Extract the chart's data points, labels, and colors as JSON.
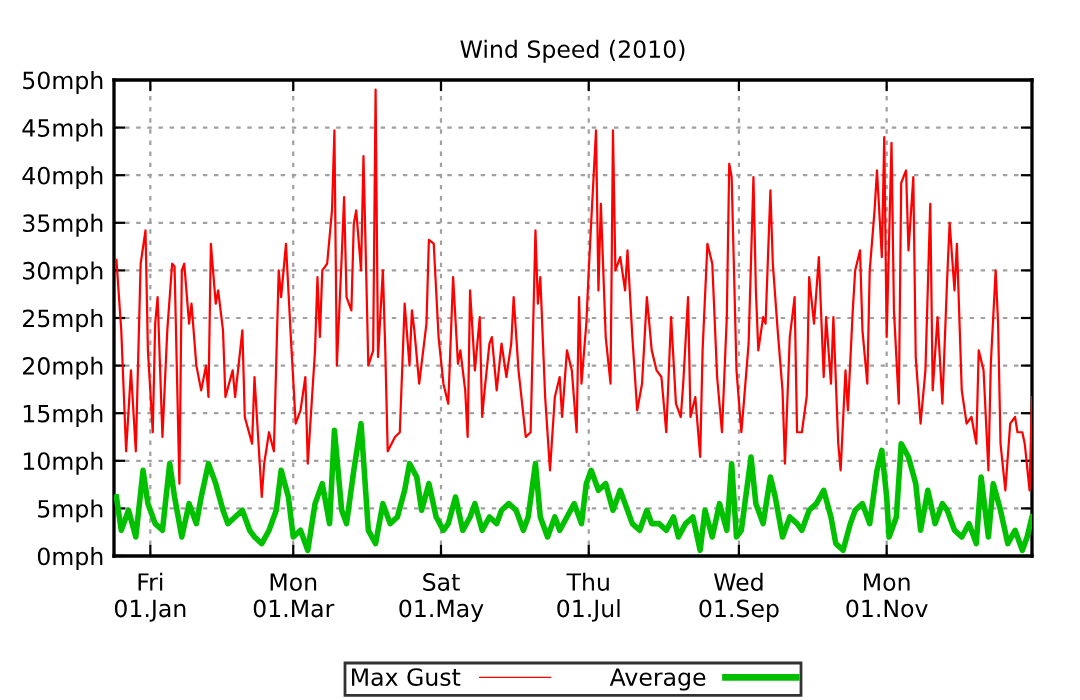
{
  "chart_data": {
    "type": "line",
    "title": "Wind Speed (2010)",
    "xlim": [
      "2009-12-17",
      "2010-12-31"
    ],
    "xticks": [
      {
        "value": "2010-01-01",
        "label": "Fri\n01.Jan"
      },
      {
        "value": "2010-03-01",
        "label": "Mon\n01.Mar"
      },
      {
        "value": "2010-05-01",
        "label": "Sat\n01.May"
      },
      {
        "value": "2010-07-01",
        "label": "Thu\n01.Jul"
      },
      {
        "value": "2010-09-01",
        "label": "Wed\n01.Sep"
      },
      {
        "value": "2010-11-01",
        "label": "Mon\n01.Nov"
      }
    ],
    "ylim": [
      0,
      50
    ],
    "yticks": [
      {
        "value": 0,
        "label": "0mph"
      },
      {
        "value": 5,
        "label": "5mph"
      },
      {
        "value": 10,
        "label": "10mph"
      },
      {
        "value": 15,
        "label": "15mph"
      },
      {
        "value": 20,
        "label": "20mph"
      },
      {
        "value": 25,
        "label": "25mph"
      },
      {
        "value": 30,
        "label": "30mph"
      },
      {
        "value": 35,
        "label": "35mph"
      },
      {
        "value": 40,
        "label": "40mph"
      },
      {
        "value": 45,
        "label": "45mph"
      },
      {
        "value": 50,
        "label": "50mph"
      }
    ],
    "grid": true,
    "legend": "bottom",
    "line_style": "solid",
    "series": [
      {
        "name": "Max Gust",
        "color": "#ff0000",
        "x": [
          "2009-12-18",
          "2009-12-20",
          "2009-12-22",
          "2009-12-24",
          "2009-12-26",
          "2009-12-28",
          "2009-12-30",
          "2009-12-31",
          "2010-01-02",
          "2010-01-03",
          "2010-01-04",
          "2010-01-06",
          "2010-01-08",
          "2010-01-10",
          "2010-01-11",
          "2010-01-13",
          "2010-01-14",
          "2010-01-15",
          "2010-01-17",
          "2010-01-18",
          "2010-01-20",
          "2010-01-22",
          "2010-01-24",
          "2010-01-25",
          "2010-01-26",
          "2010-01-28",
          "2010-01-29",
          "2010-01-31",
          "2010-02-01",
          "2010-02-04",
          "2010-02-05",
          "2010-02-08",
          "2010-02-09",
          "2010-02-12",
          "2010-02-13",
          "2010-02-16",
          "2010-02-17",
          "2010-02-19",
          "2010-02-21",
          "2010-02-23",
          "2010-02-24",
          "2010-02-26",
          "2010-02-28",
          "2010-03-02",
          "2010-03-04",
          "2010-03-06",
          "2010-03-07",
          "2010-03-10",
          "2010-03-11",
          "2010-03-12",
          "2010-03-13",
          "2010-03-15",
          "2010-03-17",
          "2010-03-18",
          "2010-03-19",
          "2010-03-21",
          "2010-03-22",
          "2010-03-23",
          "2010-03-25",
          "2010-03-26",
          "2010-03-27",
          "2010-03-29",
          "2010-03-30",
          "2010-04-01",
          "2010-04-03",
          "2010-04-04",
          "2010-04-05",
          "2010-04-07",
          "2010-04-08",
          "2010-04-09",
          "2010-04-12",
          "2010-04-14",
          "2010-04-16",
          "2010-04-18",
          "2010-04-19",
          "2010-04-20",
          "2010-04-22",
          "2010-04-23",
          "2010-04-25",
          "2010-04-26",
          "2010-04-28",
          "2010-04-30",
          "2010-05-02",
          "2010-05-04",
          "2010-05-06",
          "2010-05-08",
          "2010-05-09",
          "2010-05-11",
          "2010-05-12",
          "2010-05-13",
          "2010-05-15",
          "2010-05-17",
          "2010-05-18",
          "2010-05-19",
          "2010-05-21",
          "2010-05-22",
          "2010-05-24",
          "2010-05-26",
          "2010-05-28",
          "2010-05-30",
          "2010-05-31",
          "2010-06-02",
          "2010-06-05",
          "2010-06-07",
          "2010-06-09",
          "2010-06-10",
          "2010-06-11",
          "2010-06-13",
          "2010-06-15",
          "2010-06-17",
          "2010-06-19",
          "2010-06-20",
          "2010-06-22",
          "2010-06-24",
          "2010-06-26",
          "2010-06-27",
          "2010-06-28",
          "2010-06-30",
          "2010-07-01",
          "2010-07-02",
          "2010-07-04",
          "2010-07-05",
          "2010-07-06",
          "2010-07-08",
          "2010-07-10",
          "2010-07-11",
          "2010-07-12",
          "2010-07-14",
          "2010-07-16",
          "2010-07-17",
          "2010-07-19",
          "2010-07-21",
          "2010-07-23",
          "2010-07-25",
          "2010-07-27",
          "2010-07-29",
          "2010-07-31",
          "2010-08-02",
          "2010-08-04",
          "2010-08-06",
          "2010-08-08",
          "2010-08-09",
          "2010-08-11",
          "2010-08-12",
          "2010-08-14",
          "2010-08-16",
          "2010-08-17",
          "2010-08-19",
          "2010-08-21",
          "2010-08-23",
          "2010-08-25",
          "2010-08-27",
          "2010-08-28",
          "2010-08-29",
          "2010-08-31",
          "2010-09-02",
          "2010-09-03",
          "2010-09-05",
          "2010-09-07",
          "2010-09-08",
          "2010-09-09",
          "2010-09-11",
          "2010-09-12",
          "2010-09-14",
          "2010-09-15",
          "2010-09-17",
          "2010-09-19",
          "2010-09-20",
          "2010-09-22",
          "2010-09-24",
          "2010-09-25",
          "2010-09-27",
          "2010-09-29",
          "2010-09-30",
          "2010-10-02",
          "2010-10-04",
          "2010-10-06",
          "2010-10-07",
          "2010-10-09",
          "2010-10-10",
          "2010-10-12",
          "2010-10-13",
          "2010-10-15",
          "2010-10-16",
          "2010-10-18",
          "2010-10-19",
          "2010-10-21",
          "2010-10-22",
          "2010-10-24",
          "2010-10-25",
          "2010-10-27",
          "2010-10-28",
          "2010-10-30",
          "2010-10-31",
          "2010-11-01",
          "2010-11-03",
          "2010-11-04",
          "2010-11-06",
          "2010-11-07",
          "2010-11-09",
          "2010-11-10",
          "2010-11-12",
          "2010-11-13",
          "2010-11-15",
          "2010-11-17",
          "2010-11-19",
          "2010-11-20",
          "2010-11-22",
          "2010-11-24",
          "2010-11-26",
          "2010-11-27",
          "2010-11-29",
          "2010-11-30",
          "2010-12-02",
          "2010-12-04",
          "2010-12-06",
          "2010-12-08",
          "2010-12-09",
          "2010-12-11",
          "2010-12-13",
          "2010-12-14",
          "2010-12-16",
          "2010-12-17",
          "2010-12-18",
          "2010-12-20",
          "2010-12-22",
          "2010-12-24",
          "2010-12-25",
          "2010-12-27",
          "2010-12-28",
          "2010-12-30",
          "2010-12-31"
        ],
        "values": [
          31.1,
          23.7,
          11,
          19.5,
          11,
          30.7,
          34.2,
          21.6,
          13,
          24.4,
          27.2,
          12.5,
          23.7,
          30.7,
          30.4,
          7.6,
          30,
          30.7,
          24.4,
          26.5,
          20,
          17.4,
          20,
          16.7,
          32.8,
          26.5,
          27.9,
          23.7,
          16.7,
          19.5,
          16.7,
          23.7,
          14.6,
          11.8,
          18.8,
          6.2,
          9.7,
          13,
          11,
          30,
          27.2,
          32.8,
          23,
          13.9,
          15.3,
          18.8,
          9.7,
          21.6,
          29.3,
          23,
          30,
          30.7,
          36.3,
          44.7,
          20,
          31.4,
          37.7,
          27.2,
          25.8,
          34.9,
          36.3,
          30,
          42,
          20,
          21.6,
          49,
          20.9,
          30,
          21.6,
          11,
          12.5,
          13,
          26.5,
          20,
          25.8,
          23.7,
          18.1,
          20.2,
          24.4,
          33.2,
          32.8,
          23,
          18.1,
          16,
          29.3,
          20.2,
          21.6,
          17.4,
          12.5,
          27.9,
          19.5,
          25.1,
          14.6,
          17.4,
          22.3,
          23,
          17.4,
          22.3,
          18.8,
          22.3,
          27.2,
          19.5,
          12.5,
          13,
          34.2,
          26.5,
          29.3,
          16.7,
          9,
          16.7,
          18.8,
          14.6,
          21.6,
          19.5,
          13,
          27.2,
          18.1,
          24.4,
          30,
          35,
          44.7,
          27.9,
          37,
          23,
          18.1,
          44.7,
          30,
          31.4,
          27.9,
          32.1,
          23,
          15.3,
          18.1,
          27.2,
          21.6,
          19.5,
          18.8,
          13,
          25.1,
          16,
          14.6,
          18.1,
          27.2,
          14.6,
          16.7,
          10.4,
          21.6,
          32.8,
          30.7,
          18.8,
          13,
          25.1,
          41.2,
          39.8,
          19.5,
          13,
          16,
          22.3,
          39.8,
          27.9,
          21.6,
          25.1,
          24.4,
          38.4,
          30.7,
          23.7,
          17.4,
          9.7,
          23,
          27.2,
          13,
          13,
          16.8,
          29.3,
          24.4,
          31.4,
          18.8,
          25.1,
          18.1,
          25.1,
          11.8,
          9,
          19.5,
          15.3,
          25.8,
          30,
          32.1,
          23.7,
          18.1,
          30,
          36.3,
          40.5,
          31.4,
          44,
          23,
          43.4,
          25.8,
          16,
          39.2,
          40.5,
          32.1,
          39.8,
          20.9,
          13.9,
          19.5,
          37,
          17.4,
          25.1,
          16,
          29.3,
          35,
          27.9,
          32.8,
          17.4,
          13.9,
          14.6,
          11.8,
          21.6,
          19.5,
          9,
          20.2,
          30,
          24.4,
          11.8,
          6.9,
          13.9,
          14.6,
          13,
          13,
          11.8,
          6.9,
          16.7
        ]
      },
      {
        "name": "Average",
        "color": "#00c000",
        "x": [
          "2009-12-18",
          "2009-12-20",
          "2009-12-23",
          "2009-12-26",
          "2009-12-29",
          "2009-12-31",
          "2010-01-03",
          "2010-01-06",
          "2010-01-09",
          "2010-01-11",
          "2010-01-14",
          "2010-01-17",
          "2010-01-20",
          "2010-01-22",
          "2010-01-25",
          "2010-01-28",
          "2010-01-31",
          "2010-02-02",
          "2010-02-05",
          "2010-02-08",
          "2010-02-11",
          "2010-02-13",
          "2010-02-16",
          "2010-02-19",
          "2010-02-22",
          "2010-02-24",
          "2010-02-27",
          "2010-03-01",
          "2010-03-04",
          "2010-03-07",
          "2010-03-10",
          "2010-03-13",
          "2010-03-16",
          "2010-03-18",
          "2010-03-21",
          "2010-03-23",
          "2010-03-26",
          "2010-03-29",
          "2010-04-01",
          "2010-04-04",
          "2010-04-07",
          "2010-04-10",
          "2010-04-13",
          "2010-04-16",
          "2010-04-18",
          "2010-04-21",
          "2010-04-23",
          "2010-04-26",
          "2010-04-29",
          "2010-05-02",
          "2010-05-04",
          "2010-05-07",
          "2010-05-10",
          "2010-05-13",
          "2010-05-15",
          "2010-05-18",
          "2010-05-21",
          "2010-05-24",
          "2010-05-26",
          "2010-05-29",
          "2010-06-01",
          "2010-06-04",
          "2010-06-06",
          "2010-06-09",
          "2010-06-11",
          "2010-06-14",
          "2010-06-17",
          "2010-06-19",
          "2010-06-22",
          "2010-06-25",
          "2010-06-28",
          "2010-06-30",
          "2010-07-02",
          "2010-07-05",
          "2010-07-08",
          "2010-07-11",
          "2010-07-14",
          "2010-07-16",
          "2010-07-19",
          "2010-07-22",
          "2010-07-25",
          "2010-07-27",
          "2010-07-30",
          "2010-08-02",
          "2010-08-05",
          "2010-08-07",
          "2010-08-10",
          "2010-08-13",
          "2010-08-16",
          "2010-08-18",
          "2010-08-21",
          "2010-08-24",
          "2010-08-27",
          "2010-08-29",
          "2010-08-31",
          "2010-09-02",
          "2010-09-06",
          "2010-09-08",
          "2010-09-11",
          "2010-09-14",
          "2010-09-16",
          "2010-09-19",
          "2010-09-22",
          "2010-09-25",
          "2010-09-27",
          "2010-09-30",
          "2010-10-03",
          "2010-10-06",
          "2010-10-09",
          "2010-10-11",
          "2010-10-14",
          "2010-10-17",
          "2010-10-19",
          "2010-10-22",
          "2010-10-25",
          "2010-10-28",
          "2010-10-30",
          "2010-11-01",
          "2010-11-02",
          "2010-11-05",
          "2010-11-07",
          "2010-11-10",
          "2010-11-13",
          "2010-11-15",
          "2010-11-18",
          "2010-11-21",
          "2010-11-24",
          "2010-11-26",
          "2010-11-29",
          "2010-12-02",
          "2010-12-05",
          "2010-12-08",
          "2010-12-10",
          "2010-12-13",
          "2010-12-15",
          "2010-12-18",
          "2010-12-21",
          "2010-12-24",
          "2010-12-27",
          "2010-12-29",
          "2010-12-31"
        ],
        "values": [
          6.2,
          2.7,
          4.8,
          2,
          9,
          5.5,
          3.4,
          2.7,
          9.7,
          6.2,
          2,
          5.5,
          3.4,
          6.2,
          9.7,
          7.6,
          4.8,
          3.4,
          4.1,
          4.8,
          2.7,
          2,
          1.3,
          2.7,
          4.8,
          9,
          6.2,
          2,
          2.7,
          0.6,
          5.5,
          7.6,
          3.4,
          13.2,
          4.8,
          3.4,
          9,
          13.9,
          2.7,
          1.3,
          5.5,
          3.4,
          4.1,
          6.9,
          9.7,
          8.3,
          4.8,
          7.6,
          4.1,
          2.7,
          3.4,
          6.2,
          2.7,
          4.1,
          5.5,
          2.7,
          4.1,
          3.4,
          4.8,
          5.5,
          4.8,
          2.7,
          4.1,
          9.7,
          4.1,
          2,
          4.1,
          2.7,
          4.1,
          5.5,
          3.4,
          7.6,
          9,
          6.9,
          7.6,
          4.8,
          6.9,
          5.5,
          3.4,
          2.7,
          4.8,
          3.4,
          3.4,
          2.7,
          4.1,
          2,
          3.4,
          4.1,
          0.6,
          4.8,
          2,
          5.5,
          2.7,
          9.7,
          2,
          2.7,
          10.4,
          5.5,
          3.4,
          8.3,
          6.2,
          2,
          4.1,
          3.4,
          2.7,
          4.8,
          5.5,
          6.9,
          4.1,
          1.3,
          0.6,
          3.4,
          4.8,
          5.5,
          3.4,
          9,
          11.1,
          6.2,
          2,
          4.1,
          11.8,
          10.4,
          7.6,
          2.7,
          6.9,
          3.4,
          5.5,
          4.8,
          2.7,
          2,
          3.4,
          1.3,
          8.3,
          2,
          7.6,
          4.8,
          1.3,
          2.7,
          0.6,
          2,
          4.1
        ]
      }
    ]
  }
}
